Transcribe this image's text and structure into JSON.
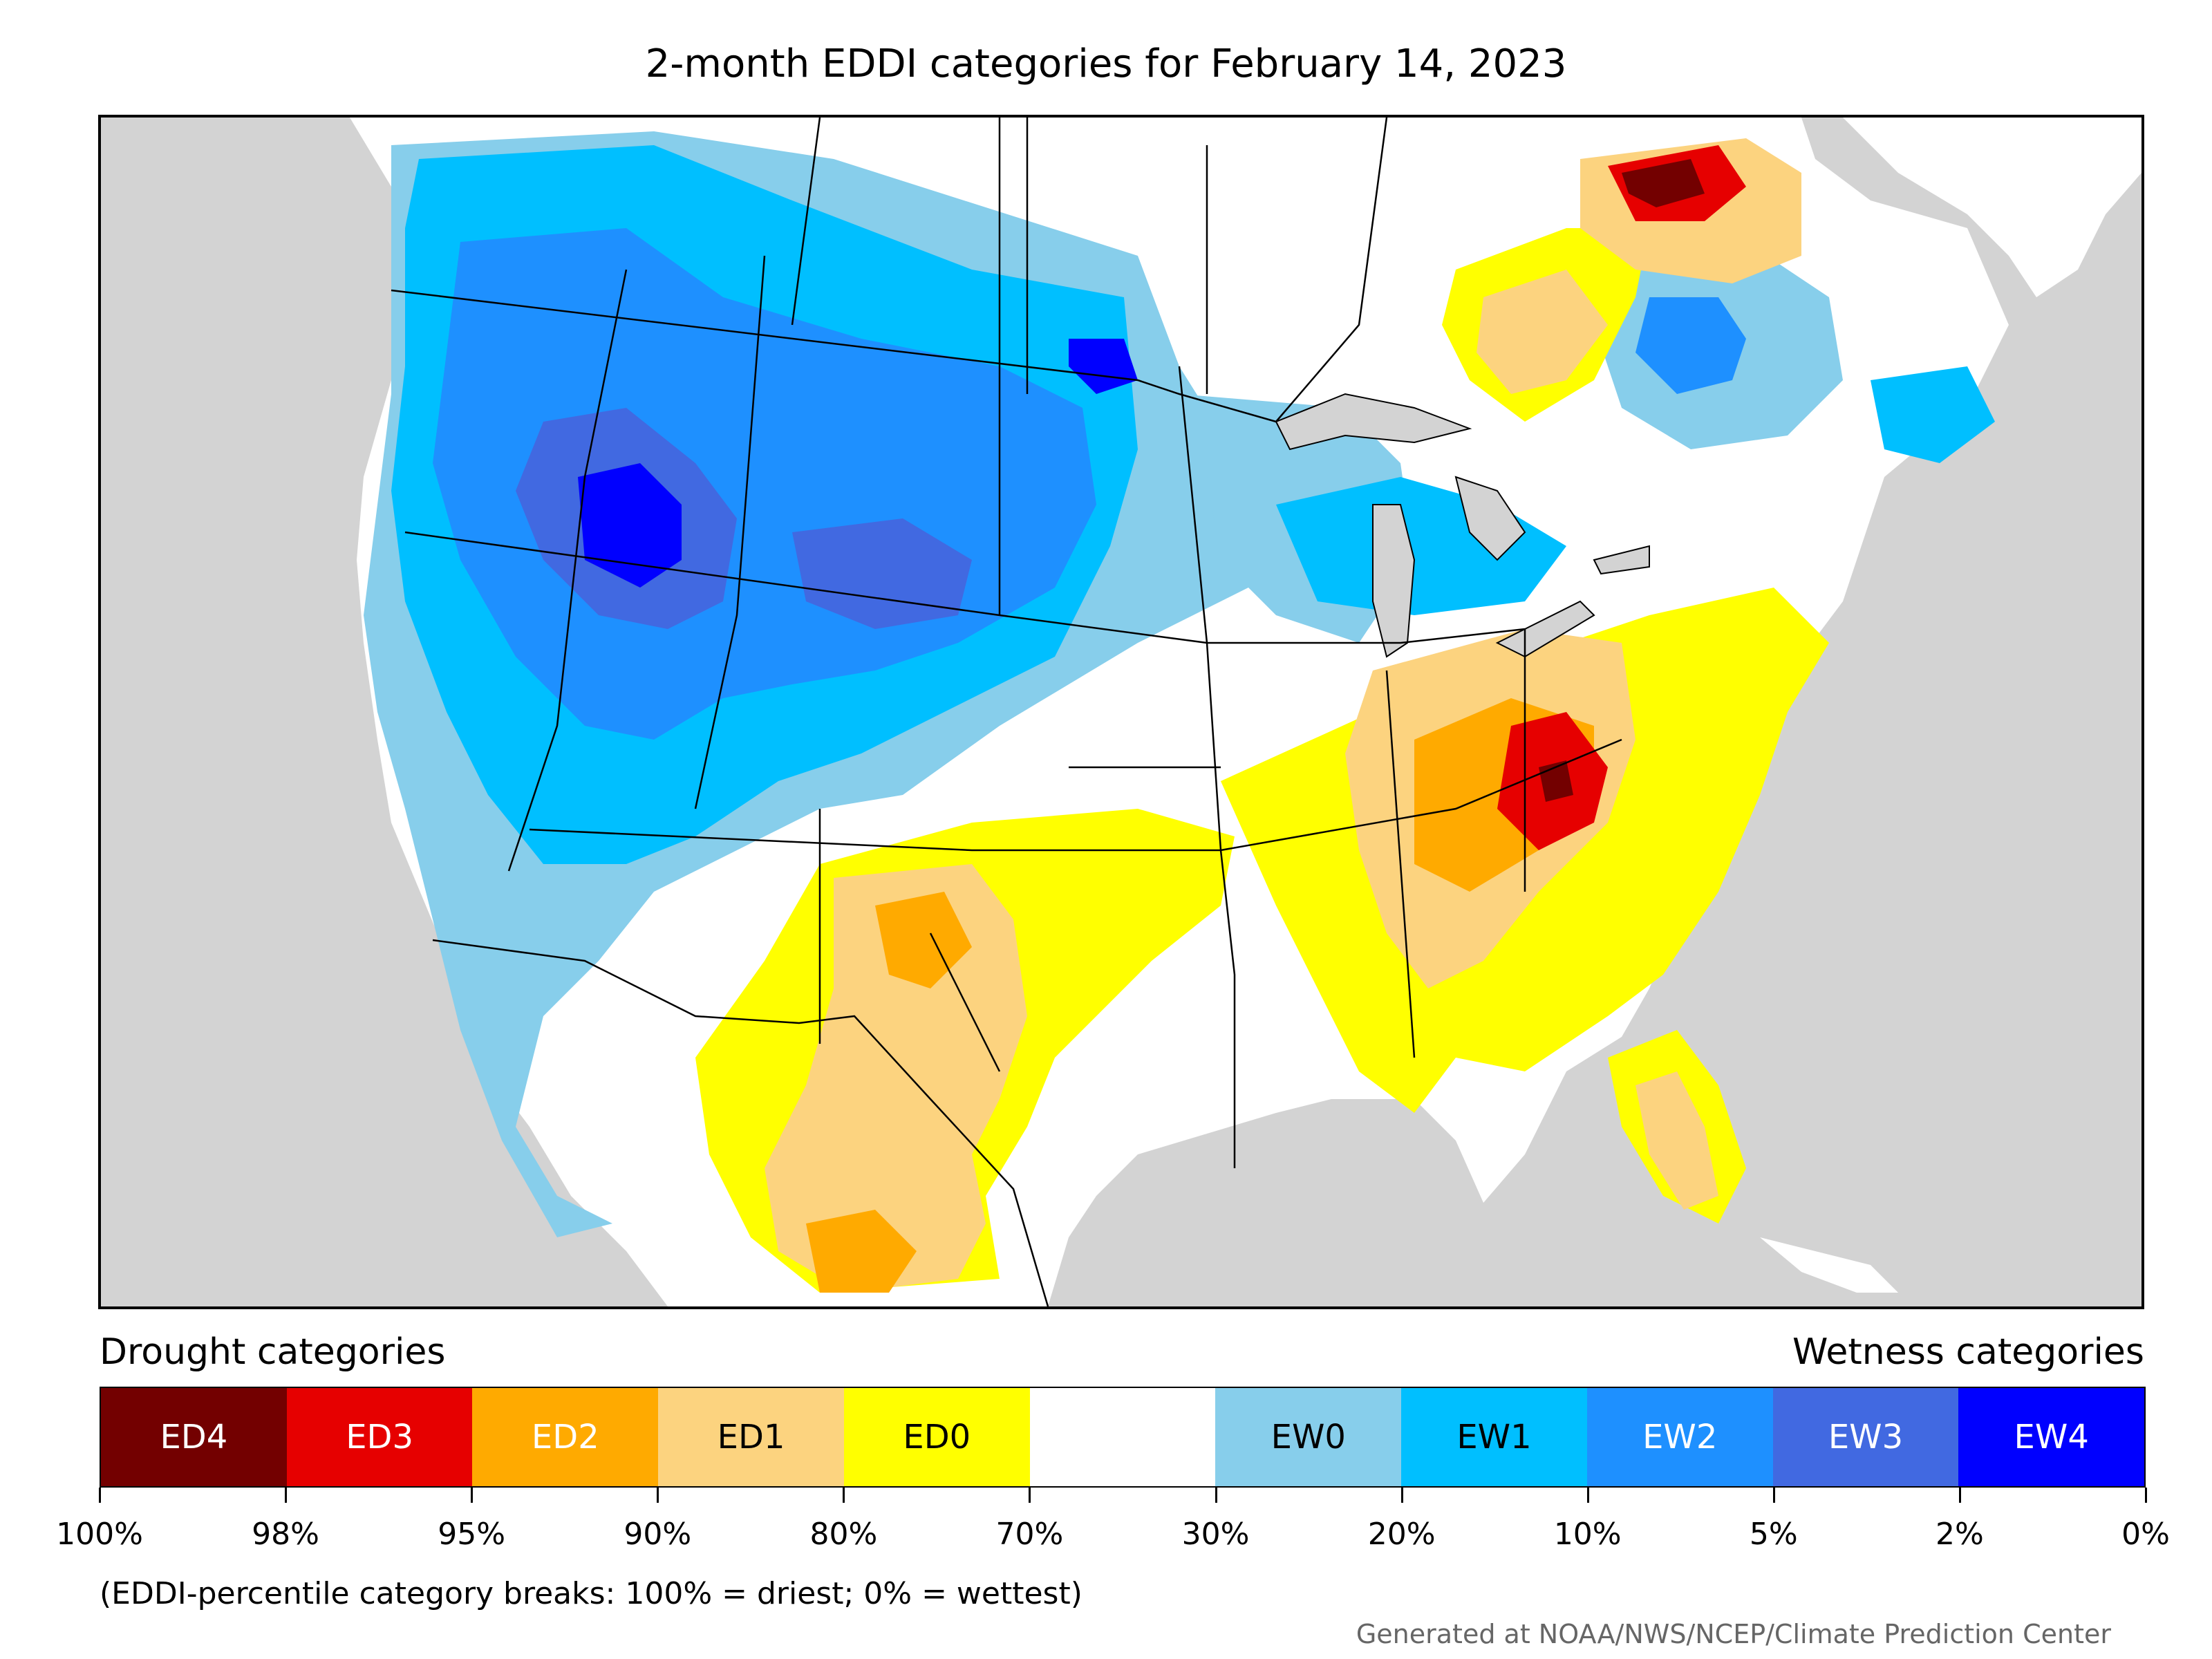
{
  "title": "2-month EDDI categories for February 14, 2023",
  "legend": {
    "drought_heading": "Drought categories",
    "wetness_heading": "Wetness categories",
    "segments": [
      {
        "label": "ED4",
        "color": "#730000",
        "text_color": "#ffffff"
      },
      {
        "label": "ED3",
        "color": "#e60000",
        "text_color": "#ffffff"
      },
      {
        "label": "ED2",
        "color": "#ffaa00",
        "text_color": "#ffffff"
      },
      {
        "label": "ED1",
        "color": "#fcd37f",
        "text_color": "#000000"
      },
      {
        "label": "ED0",
        "color": "#ffff00",
        "text_color": "#000000"
      },
      {
        "label": "",
        "color": "#ffffff",
        "text_color": "#000000"
      },
      {
        "label": "EW0",
        "color": "#87ceeb",
        "text_color": "#000000"
      },
      {
        "label": "EW1",
        "color": "#00bfff",
        "text_color": "#000000"
      },
      {
        "label": "EW2",
        "color": "#1e90ff",
        "text_color": "#ffffff"
      },
      {
        "label": "EW3",
        "color": "#4169e1",
        "text_color": "#ffffff"
      },
      {
        "label": "EW4",
        "color": "#0000ff",
        "text_color": "#ffffff"
      }
    ],
    "ticks": [
      "100%",
      "98%",
      "95%",
      "90%",
      "80%",
      "70%",
      "30%",
      "20%",
      "10%",
      "5%",
      "2%",
      "0%"
    ]
  },
  "note": "(EDDI-percentile category breaks: 100% = driest; 0% = wettest)",
  "credit": "Generated at NOAA/NWS/NCEP/Climate Prediction Center"
}
